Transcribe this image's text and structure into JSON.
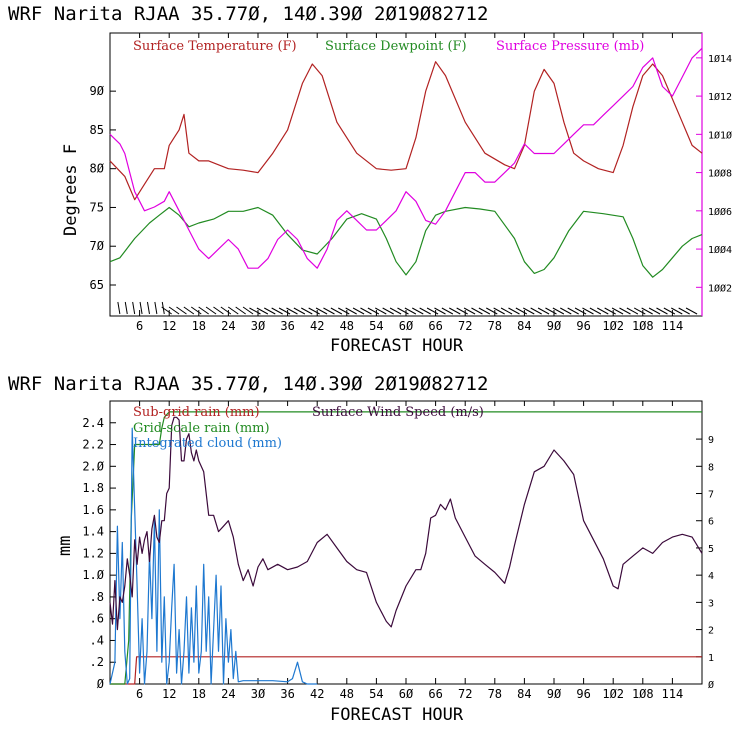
{
  "chart_data": [
    {
      "type": "line",
      "title": "WRF   Narita RJAA    35.770, 140.390  2019082712",
      "xlabel": "FORECAST HOUR",
      "ylabel": "Degrees F",
      "xlim": [
        0,
        120
      ],
      "ylim": [
        61,
        97.5
      ],
      "y2lim": [
        1000.5,
        1015.3
      ],
      "x_ticks": [
        6,
        12,
        18,
        24,
        30,
        36,
        42,
        48,
        54,
        60,
        66,
        72,
        78,
        84,
        90,
        96,
        102,
        108,
        114
      ],
      "x_tick_labels": [
        "6",
        "12",
        "18",
        "24",
        "3Ø",
        "36",
        "42",
        "48",
        "54",
        "6Ø",
        "66",
        "72",
        "78",
        "84",
        "9Ø",
        "96",
        "1Ø2",
        "1Ø8",
        "114"
      ],
      "y_ticks": [
        65,
        70,
        75,
        80,
        85,
        90
      ],
      "y_tick_labels": [
        "65",
        "7Ø",
        "75",
        "8Ø",
        "85",
        "9Ø"
      ],
      "y2_ticks": [
        1002,
        1004,
        1006,
        1008,
        1010,
        1012,
        1014
      ],
      "y2_tick_labels": [
        "1ØØ2",
        "1ØØ4",
        "1ØØ6",
        "1ØØ8",
        "1Ø1Ø",
        "1Ø12",
        "1Ø14"
      ],
      "wind_barbs_note": "wind barbs along bottom of panel",
      "series": [
        {
          "name": "Surface Temperature (F)",
          "legend": "Surface Temperature (F)",
          "color": "#b22222",
          "axis": "left",
          "x": [
            0,
            3,
            5,
            7,
            9,
            11,
            12,
            13,
            14,
            15,
            16,
            18,
            20,
            22,
            24,
            27,
            30,
            33,
            36,
            39,
            41,
            43,
            46,
            50,
            54,
            57,
            60,
            62,
            64,
            66,
            68,
            72,
            76,
            80,
            82,
            84,
            86,
            88,
            90,
            92,
            94,
            96,
            99,
            102,
            104,
            106,
            108,
            110,
            112,
            114,
            116,
            118,
            120
          ],
          "y": [
            81,
            79,
            76,
            78,
            80,
            80,
            83,
            84,
            85,
            87,
            82,
            81,
            81,
            80.5,
            80,
            79.8,
            79.5,
            82,
            85,
            91,
            93.5,
            92,
            86,
            82,
            80,
            79.8,
            80,
            84,
            90,
            93.8,
            92,
            86,
            82,
            80.5,
            80,
            83,
            90,
            92.8,
            91,
            86,
            82,
            81,
            80,
            79.5,
            83,
            88,
            92,
            93.5,
            92,
            89,
            86,
            83,
            82
          ]
        },
        {
          "name": "Surface Dewpoint (F)",
          "legend": "Surface Dewpoint (F)",
          "color": "#228b22",
          "axis": "left",
          "x": [
            0,
            2,
            5,
            8,
            10,
            12,
            14,
            16,
            18,
            21,
            24,
            27,
            30,
            33,
            36,
            39,
            42,
            45,
            48,
            51,
            54,
            56,
            58,
            60,
            62,
            64,
            66,
            68,
            72,
            75,
            78,
            82,
            84,
            86,
            88,
            90,
            93,
            96,
            100,
            104,
            106,
            108,
            110,
            112,
            114,
            116,
            118,
            120
          ],
          "y": [
            68,
            68.5,
            71,
            73,
            74,
            75,
            74,
            72.5,
            73,
            73.5,
            74.5,
            74.5,
            75,
            74,
            71.5,
            69.5,
            69,
            71,
            73.5,
            74.2,
            73.5,
            71,
            68,
            66.3,
            68,
            72,
            74,
            74.5,
            75,
            74.8,
            74.5,
            71,
            68,
            66.5,
            67,
            68.5,
            72,
            74.5,
            74.2,
            73.8,
            71,
            67.5,
            66,
            67,
            68.5,
            70,
            71,
            71.5
          ]
        },
        {
          "name": "Surface Pressure (mb)",
          "legend": "Surface Pressure (mb)",
          "color": "#e000e0",
          "axis": "right",
          "x": [
            0,
            2,
            3,
            5,
            7,
            9,
            11,
            12,
            14,
            16,
            18,
            20,
            22,
            24,
            26,
            28,
            30,
            32,
            34,
            36,
            38,
            40,
            42,
            44,
            46,
            48,
            50,
            52,
            54,
            56,
            58,
            60,
            62,
            64,
            66,
            68,
            70,
            72,
            74,
            76,
            78,
            80,
            82,
            84,
            86,
            88,
            90,
            92,
            94,
            96,
            98,
            100,
            102,
            104,
            106,
            108,
            110,
            112,
            114,
            116,
            118,
            120
          ],
          "y": [
            1010,
            1009.5,
            1009,
            1007,
            1006,
            1006.2,
            1006.5,
            1007,
            1006,
            1005,
            1004,
            1003.5,
            1004,
            1004.5,
            1004,
            1003,
            1003,
            1003.5,
            1004.5,
            1005,
            1004.5,
            1003.5,
            1003,
            1004,
            1005.5,
            1006,
            1005.5,
            1005,
            1005,
            1005.5,
            1006,
            1007,
            1006.5,
            1005.5,
            1005.3,
            1006,
            1007,
            1008,
            1008,
            1007.5,
            1007.5,
            1008,
            1008.5,
            1009.5,
            1009,
            1009,
            1009,
            1009.5,
            1010,
            1010.5,
            1010.5,
            1011,
            1011.5,
            1012,
            1012.5,
            1013.5,
            1014,
            1012.5,
            1012,
            1013,
            1014,
            1014.5
          ]
        }
      ]
    },
    {
      "type": "line",
      "title": "WRF   Narita RJAA    35.770, 140.390  2019082712",
      "xlabel": "FORECAST HOUR",
      "ylabel": "mm",
      "xlim": [
        0,
        120
      ],
      "ylim": [
        0,
        2.6
      ],
      "y2lim": [
        0,
        10.4
      ],
      "x_ticks": [
        6,
        12,
        18,
        24,
        30,
        36,
        42,
        48,
        54,
        60,
        66,
        72,
        78,
        84,
        90,
        96,
        102,
        108,
        114
      ],
      "x_tick_labels": [
        "6",
        "12",
        "18",
        "24",
        "3Ø",
        "36",
        "42",
        "48",
        "54",
        "6Ø",
        "66",
        "72",
        "78",
        "84",
        "9Ø",
        "96",
        "1Ø2",
        "1Ø8",
        "114"
      ],
      "y_ticks": [
        0,
        0.2,
        0.4,
        0.6,
        0.8,
        1.0,
        1.2,
        1.4,
        1.6,
        1.8,
        2.0,
        2.2,
        2.4
      ],
      "y_tick_labels": [
        "Ø",
        ".2",
        ".4",
        ".6",
        ".8",
        "1.Ø",
        "1.2",
        "1.4",
        "1.6",
        "1.8",
        "2.Ø",
        "2.2",
        "2.4"
      ],
      "y2_ticks": [
        0,
        1,
        2,
        3,
        4,
        5,
        6,
        7,
        8,
        9
      ],
      "y2_tick_labels": [
        "Ø",
        "1",
        "2",
        "3",
        "4",
        "5",
        "6",
        "7",
        "8",
        "9"
      ],
      "series": [
        {
          "name": "Sub-grid rain (mm)",
          "legend": "Sub-grid rain (mm)",
          "color": "#b22222",
          "axis": "left",
          "x": [
            0,
            5,
            5.4,
            120
          ],
          "y": [
            0,
            0,
            0.25,
            0.25
          ]
        },
        {
          "name": "Grid-scale rain (mm)",
          "legend": "Grid-scale rain (mm)",
          "color": "#228b22",
          "axis": "left",
          "x": [
            0,
            3,
            3.8,
            4.3,
            5,
            10,
            10.5,
            11,
            12,
            120
          ],
          "y": [
            0,
            0,
            0.4,
            1.5,
            2.2,
            2.2,
            2.35,
            2.45,
            2.5,
            2.5
          ]
        },
        {
          "name": "Integrated cloud (mm)",
          "legend": "Integrated cloud (mm)",
          "color": "#1e78d0",
          "axis": "left",
          "x": [
            0,
            1,
            1.5,
            2,
            2.5,
            3,
            3.5,
            4,
            4.5,
            5,
            5.5,
            6,
            6.5,
            7,
            7.5,
            8,
            8.5,
            9,
            9.5,
            10,
            10.5,
            11,
            11.5,
            12,
            12.5,
            13,
            13.5,
            14,
            14.5,
            15,
            15.5,
            16,
            16.5,
            17,
            17.5,
            18,
            18.5,
            19,
            19.5,
            20,
            20.5,
            21,
            21.5,
            22,
            22.5,
            23,
            23.5,
            24,
            24.5,
            25,
            25.5,
            26,
            27,
            30,
            33,
            36,
            37,
            38,
            39,
            40,
            42
          ],
          "y": [
            0,
            0.2,
            1.45,
            0.6,
            1.3,
            0.3,
            0,
            0.05,
            2.35,
            1.6,
            0.9,
            0.1,
            0.6,
            0,
            0.3,
            1.2,
            0.6,
            1.5,
            0.3,
            1.6,
            0.2,
            0.8,
            0,
            0.2,
            0.7,
            1.1,
            0.1,
            0.5,
            0,
            0.3,
            0.8,
            0.1,
            0.7,
            0.2,
            0.9,
            0.1,
            0.3,
            1.1,
            0.3,
            0.8,
            0,
            0.5,
            1.0,
            0.3,
            0.9,
            0,
            0.6,
            0.2,
            0.5,
            0.05,
            0.3,
            0.02,
            0.03,
            0.03,
            0.03,
            0.02,
            0.05,
            0.2,
            0.02,
            0,
            0
          ]
        },
        {
          "name": "Surface Wind Speed (m/s)",
          "legend": "Surface Wind Speed (m/s)",
          "color": "#3b0a3b",
          "axis": "right",
          "x": [
            0,
            0.5,
            1,
            1.5,
            2,
            2.5,
            3,
            3.5,
            4,
            4.5,
            5,
            5.5,
            6,
            6.5,
            7,
            7.5,
            8,
            8.5,
            9,
            9.5,
            10,
            10.5,
            11,
            11.5,
            12,
            12.5,
            13,
            13.5,
            14,
            14.5,
            15,
            15.5,
            16,
            16.5,
            17,
            17.5,
            18,
            19,
            20,
            21,
            22,
            23,
            24,
            25,
            26,
            27,
            28,
            29,
            30,
            31,
            32,
            34,
            36,
            38,
            40,
            42,
            44,
            46,
            48,
            50,
            52,
            54,
            56,
            57,
            58,
            60,
            62,
            63,
            64,
            65,
            66,
            67,
            68,
            69,
            70,
            72,
            74,
            76,
            78,
            80,
            81,
            82,
            84,
            86,
            88,
            90,
            92,
            94,
            96,
            98,
            100,
            102,
            103,
            104,
            106,
            108,
            110,
            112,
            114,
            116,
            118,
            120
          ],
          "y": [
            3,
            2.2,
            3.8,
            2,
            3.2,
            3,
            3.6,
            4.6,
            4,
            3.2,
            5.3,
            4.4,
            5.4,
            4.8,
            5.3,
            5.6,
            4.5,
            5.7,
            6.2,
            5.4,
            5.2,
            6,
            6,
            7,
            7.2,
            9.5,
            9.8,
            9.8,
            9.7,
            8.2,
            8.2,
            9,
            9.2,
            8.5,
            8.2,
            8.6,
            8.2,
            7.8,
            6.2,
            6.2,
            5.6,
            5.8,
            6.0,
            5.4,
            4.4,
            3.8,
            4.2,
            3.6,
            4.3,
            4.6,
            4.2,
            4.4,
            4.2,
            4.3,
            4.5,
            5.2,
            5.5,
            5,
            4.5,
            4.2,
            4.1,
            3,
            2.3,
            2.1,
            2.7,
            3.6,
            4.2,
            4.2,
            4.8,
            6.1,
            6.2,
            6.6,
            6.4,
            6.8,
            6.1,
            5.4,
            4.7,
            4.4,
            4.1,
            3.7,
            4.3,
            5.1,
            6.6,
            7.8,
            8,
            8.6,
            8.2,
            7.7,
            6,
            5.3,
            4.6,
            3.6,
            3.5,
            4.4,
            4.7,
            5,
            4.8,
            5.2,
            5.4,
            5.5,
            5.4,
            4.8
          ]
        }
      ]
    }
  ],
  "panels": [
    {
      "header": "WRF   Narita RJAA    35.77Ø, 14Ø.39Ø  2Ø19Ø82712",
      "xlabel": "FORECAST HOUR",
      "ylabel": "Degrees F",
      "legend": [
        "Surface Temperature (F)",
        "Surface Dewpoint (F)",
        "Surface Pressure (mb)"
      ]
    },
    {
      "header": "WRF   Narita RJAA    35.77Ø, 14Ø.39Ø  2Ø19Ø82712",
      "xlabel": "FORECAST HOUR",
      "ylabel": "mm",
      "legend": [
        "Sub-grid rain (mm)",
        "Surface Wind Speed (m/s)",
        "Grid-scale rain (mm)",
        "Integrated cloud (mm)"
      ]
    }
  ]
}
